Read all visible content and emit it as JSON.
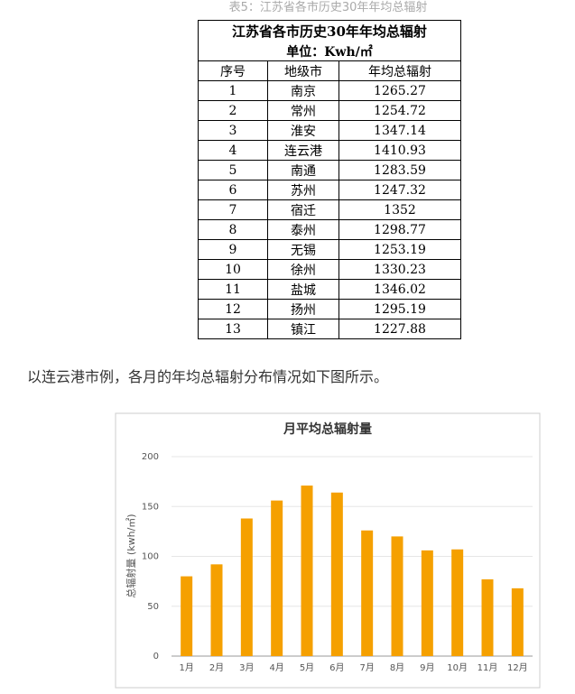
{
  "caption": "表5：江苏省各市历史30年年均总辐射",
  "table": {
    "title": "江苏省各市历史30年年均总辐射",
    "unit": "单位：Kwh/㎡",
    "headers": [
      "序号",
      "地级市",
      "年均总辐射"
    ],
    "rows": [
      [
        "1",
        "南京",
        "1265.27"
      ],
      [
        "2",
        "常州",
        "1254.72"
      ],
      [
        "3",
        "淮安",
        "1347.14"
      ],
      [
        "4",
        "连云港",
        "1410.93"
      ],
      [
        "5",
        "南通",
        "1283.59"
      ],
      [
        "6",
        "苏州",
        "1247.32"
      ],
      [
        "7",
        "宿迁",
        "1352"
      ],
      [
        "8",
        "泰州",
        "1298.77"
      ],
      [
        "9",
        "无锡",
        "1253.19"
      ],
      [
        "10",
        "徐州",
        "1330.23"
      ],
      [
        "11",
        "盐城",
        "1346.02"
      ],
      [
        "12",
        "扬州",
        "1295.19"
      ],
      [
        "13",
        "镇江",
        "1227.88"
      ]
    ]
  },
  "paragraph": "以连云港市例，各月的年均总辐射分布情况如下图所示。",
  "chart_data": {
    "type": "bar",
    "title": "月平均总辐射量",
    "y_label": "总辐射量 (kwh/㎡)",
    "categories": [
      "1月",
      "2月",
      "3月",
      "4月",
      "5月",
      "6月",
      "7月",
      "8月",
      "9月",
      "10月",
      "11月",
      "12月"
    ],
    "values": [
      80,
      92,
      138,
      156,
      171,
      164,
      126,
      120,
      106,
      107,
      77,
      68
    ],
    "color": "#f5a000",
    "ylim": [
      0,
      200
    ],
    "yticks": [
      0,
      50,
      100,
      150,
      200
    ],
    "grid": true
  }
}
